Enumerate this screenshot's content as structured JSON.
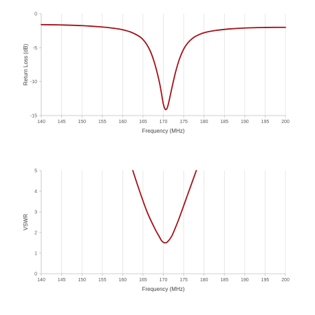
{
  "chart_data": [
    {
      "type": "line",
      "xlabel": "Frequency (MHz)",
      "ylabel": "Return Loss (dB)",
      "xlim": [
        140,
        200
      ],
      "ylim": [
        -15,
        0
      ],
      "xticks": [
        "140",
        "145",
        "150",
        "155",
        "160",
        "165",
        "170",
        "175",
        "180",
        "185",
        "190",
        "195",
        "200"
      ],
      "yticks": [
        "0",
        "-5",
        "-10",
        "-15"
      ],
      "grid": "vertical",
      "series": [
        {
          "color": "#a50f15",
          "x": [
            140,
            145,
            150,
            155,
            158,
            160,
            162,
            164,
            165,
            166,
            167,
            168,
            169,
            169.5,
            170,
            170.5,
            171,
            171.5,
            172,
            173,
            174,
            175,
            176,
            177,
            178,
            180,
            183,
            186,
            190,
            195,
            200
          ],
          "y": [
            -1.6,
            -1.65,
            -1.75,
            -1.95,
            -2.15,
            -2.35,
            -2.7,
            -3.3,
            -3.8,
            -4.6,
            -5.8,
            -7.6,
            -10.0,
            -11.6,
            -13.3,
            -14.1,
            -13.8,
            -12.6,
            -11.2,
            -8.6,
            -6.6,
            -5.2,
            -4.3,
            -3.7,
            -3.3,
            -2.8,
            -2.45,
            -2.25,
            -2.1,
            -2.02,
            -2.0
          ]
        }
      ]
    },
    {
      "type": "line",
      "xlabel": "Frequency (MHz)",
      "ylabel": "VSWR",
      "xlim": [
        140,
        200
      ],
      "ylim": [
        0,
        5
      ],
      "xticks": [
        "140",
        "145",
        "150",
        "155",
        "160",
        "165",
        "170",
        "175",
        "180",
        "185",
        "190",
        "195",
        "200"
      ],
      "yticks": [
        "0",
        "1",
        "2",
        "3",
        "4",
        "5"
      ],
      "grid": "vertical",
      "series": [
        {
          "color": "#a50f15",
          "x": [
            162.5,
            164,
            166,
            168,
            169,
            169.5,
            170,
            170.5,
            171,
            172,
            173,
            174,
            176,
            178.1
          ],
          "y": [
            5.0,
            4.1,
            3.0,
            2.15,
            1.8,
            1.62,
            1.52,
            1.5,
            1.54,
            1.8,
            2.25,
            2.75,
            3.85,
            5.0
          ]
        }
      ]
    }
  ]
}
